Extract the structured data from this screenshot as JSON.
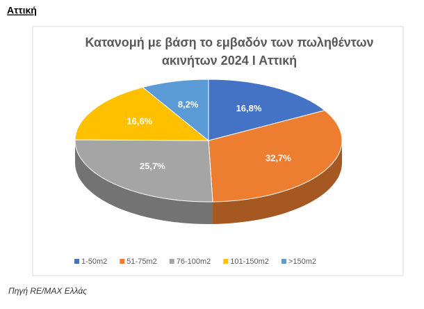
{
  "heading": "Αττική",
  "source": "Πηγή RE/MAX Ελλάς",
  "chart_data": {
    "type": "pie",
    "title": [
      "Κατανομή με βάση το εμβαδόν των πωληθέντων",
      "ακινήτων 2024 Ι Αττική"
    ],
    "categories": [
      "1-50m2",
      "51-75m2",
      "76-100m2",
      "101-150m2",
      ">150m2"
    ],
    "values": [
      16.8,
      32.7,
      25.7,
      16.6,
      8.2
    ],
    "value_labels": [
      "16,8%",
      "32,7%",
      "25,7%",
      "16,6%",
      "8,2%"
    ],
    "colors": [
      "#4472c4",
      "#ed7d31",
      "#a5a5a5",
      "#ffc000",
      "#5b9bd5"
    ],
    "legend": "bottom"
  }
}
